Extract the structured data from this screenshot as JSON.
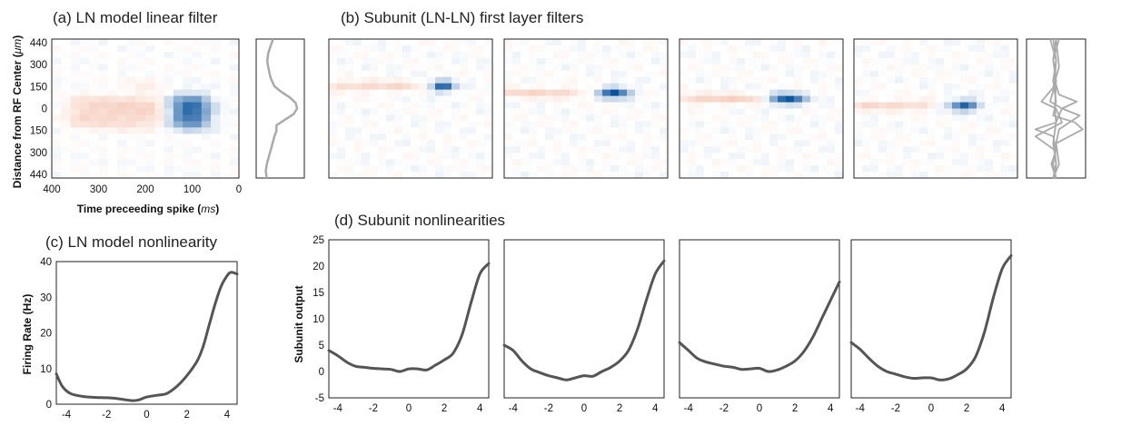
{
  "colors": {
    "heat_positive": "#e8845e",
    "heat_negative": "#08519c",
    "trace_gray": "#aaaaaa",
    "curve_dark": "#555555",
    "frame": "#222222"
  },
  "panels": {
    "a_title": "(a) LN model linear filter",
    "b_title": "(b) Subunit (LN-LN) first layer filters",
    "c_title": "(c) LN model nonlinearity",
    "d_title": "(d) Subunit nonlinearities"
  },
  "labels": {
    "a_xlabel_pre": "Time preceeding spike (",
    "a_xlabel_unit": "ms",
    "a_xlabel_post": ")",
    "a_ylabel_pre": "Distance from RF Center (",
    "a_ylabel_unit": "μm",
    "a_ylabel_post": ")",
    "c_ylabel": "Firing Rate (Hz)",
    "d_ylabel": "Subunit output"
  },
  "chart_data": [
    {
      "id": "a_filter",
      "type": "heatmap",
      "title": "(a) LN model linear filter",
      "xlabel": "Time preceeding spike (ms)",
      "ylabel": "Distance from RF Center (μm)",
      "x_ticks": [
        "400",
        "300",
        "200",
        "100",
        "0"
      ],
      "y_ticks": [
        "440",
        "300",
        "150",
        "0",
        "150",
        "300",
        "440"
      ],
      "xlim": [
        400,
        0
      ],
      "ylim": [
        440,
        -440
      ],
      "rows": 22,
      "cols": 20,
      "components": [
        {
          "sign": 1,
          "amp": 0.34,
          "x": [
            125,
            360
          ],
          "y": [
            -115,
            70
          ]
        },
        {
          "sign": -1,
          "amp": 1.0,
          "x": [
            70,
            150
          ],
          "y": [
            -115,
            75
          ]
        },
        {
          "sign": 1,
          "amp": 0.15,
          "x": [
            170,
            230
          ],
          "y": [
            110,
            190
          ]
        }
      ]
    },
    {
      "id": "a_profile",
      "type": "line",
      "y_from_top": [
        0,
        0.05,
        0.1,
        0.16,
        0.22,
        0.28,
        0.34,
        0.38,
        0.42,
        0.46,
        0.5,
        0.54,
        0.58,
        0.62,
        0.66,
        0.7,
        0.75,
        0.8,
        0.85,
        0.9,
        0.95,
        1.0
      ],
      "x": [
        0.35,
        0.3,
        0.25,
        0.23,
        0.26,
        0.3,
        0.38,
        0.52,
        0.7,
        0.82,
        0.85,
        0.78,
        0.6,
        0.42,
        0.42,
        0.38,
        0.34,
        0.3,
        0.26,
        0.22,
        0.2,
        0.22
      ]
    },
    {
      "id": "b_filters",
      "type": "heatmap",
      "title": "(b) Subunit (LN-LN) first layer filters",
      "rows": 22,
      "cols": 20,
      "filters": [
        {
          "center_row": 7.5,
          "blue_col": [
            12.5,
            15.5
          ],
          "orange_col": [
            0,
            10.5
          ],
          "orange_amp": 0.3,
          "blue_amp": 0.95
        },
        {
          "center_row": 8.5,
          "blue_col": [
            11.5,
            15.5
          ],
          "orange_col": [
            0,
            9.5
          ],
          "orange_amp": 0.3,
          "blue_amp": 1.0
        },
        {
          "center_row": 9.5,
          "blue_col": [
            11.0,
            15.5
          ],
          "orange_col": [
            0,
            9.5
          ],
          "orange_amp": 0.34,
          "blue_amp": 1.0
        },
        {
          "center_row": 10.5,
          "blue_col": [
            11.5,
            15.5
          ],
          "orange_col": [
            0,
            9.5
          ],
          "orange_amp": 0.3,
          "blue_amp": 0.9
        }
      ]
    },
    {
      "id": "b_profiles",
      "type": "line",
      "series": [
        {
          "y_from_top": [
            0,
            0.15,
            0.3,
            0.4,
            0.45,
            0.5,
            0.6,
            0.75,
            0.9,
            1.0
          ],
          "x": [
            0.45,
            0.5,
            0.48,
            0.55,
            0.85,
            0.6,
            0.5,
            0.45,
            0.5,
            0.48
          ]
        },
        {
          "y_from_top": [
            0,
            0.15,
            0.3,
            0.45,
            0.5,
            0.55,
            0.65,
            0.75,
            0.9,
            1.0
          ],
          "x": [
            0.5,
            0.45,
            0.5,
            0.4,
            0.6,
            0.9,
            0.55,
            0.5,
            0.45,
            0.5
          ]
        },
        {
          "y_from_top": [
            0,
            0.15,
            0.3,
            0.45,
            0.55,
            0.6,
            0.65,
            0.75,
            0.9,
            1.0
          ],
          "x": [
            0.4,
            0.5,
            0.45,
            0.5,
            0.45,
            0.82,
            0.95,
            0.5,
            0.55,
            0.45
          ]
        },
        {
          "y_from_top": [
            0,
            0.15,
            0.3,
            0.5,
            0.6,
            0.65,
            0.7,
            0.8,
            0.9,
            1.0
          ],
          "x": [
            0.55,
            0.45,
            0.5,
            0.48,
            0.5,
            0.15,
            0.45,
            0.5,
            0.42,
            0.5
          ]
        },
        {
          "y_from_top": [
            0,
            0.2,
            0.35,
            0.45,
            0.5,
            0.6,
            0.7,
            0.8,
            0.9,
            1.0
          ],
          "x": [
            0.5,
            0.55,
            0.45,
            0.25,
            0.5,
            0.6,
            0.15,
            0.48,
            0.5,
            0.45
          ]
        }
      ]
    },
    {
      "id": "c_nonlinearity",
      "type": "line",
      "title": "(c) LN model nonlinearity",
      "xlabel": "",
      "ylabel": "Firing Rate (Hz)",
      "xlim": [
        -4.5,
        4.5
      ],
      "ylim": [
        0,
        40
      ],
      "x_ticks": [
        -4,
        -2,
        0,
        2,
        4
      ],
      "y_ticks": [
        0,
        10,
        20,
        30,
        40
      ],
      "x": [
        -4.5,
        -4.2,
        -3.8,
        -3.2,
        -2.6,
        -2.0,
        -1.5,
        -1.0,
        -0.7,
        -0.4,
        0.0,
        0.5,
        1.0,
        1.5,
        2.0,
        2.5,
        2.8,
        3.1,
        3.4,
        3.7,
        4.0,
        4.2,
        4.5
      ],
      "y": [
        8.5,
        5.0,
        3.0,
        2.2,
        1.9,
        1.8,
        1.6,
        1.2,
        1.0,
        1.2,
        2.0,
        2.5,
        3.0,
        5.0,
        8.0,
        12.0,
        16.0,
        22.0,
        28.0,
        33.0,
        36.0,
        37.0,
        36.5
      ]
    },
    {
      "id": "d_nonlinearities",
      "type": "line",
      "title": "(d) Subunit nonlinearities",
      "ylabel": "Subunit output",
      "xlim": [
        -4.5,
        4.5
      ],
      "ylim": [
        -5,
        25
      ],
      "x_ticks": [
        -4,
        -2,
        0,
        2,
        4
      ],
      "y_ticks": [
        -5,
        0,
        5,
        10,
        15,
        20,
        25
      ],
      "series": [
        {
          "x": [
            -4.5,
            -4.0,
            -3.5,
            -3.0,
            -2.5,
            -2.0,
            -1.5,
            -1.0,
            -0.5,
            0.0,
            0.5,
            1.0,
            1.5,
            2.0,
            2.5,
            3.0,
            3.5,
            4.0,
            4.5
          ],
          "y": [
            4.0,
            3.0,
            1.8,
            1.0,
            0.8,
            0.6,
            0.5,
            0.4,
            0.0,
            0.5,
            0.5,
            0.3,
            1.2,
            2.2,
            3.5,
            7.0,
            13.0,
            18.5,
            20.5
          ]
        },
        {
          "x": [
            -4.5,
            -4.0,
            -3.5,
            -3.0,
            -2.5,
            -2.0,
            -1.5,
            -1.0,
            -0.5,
            0.0,
            0.5,
            1.0,
            1.5,
            2.0,
            2.5,
            3.0,
            3.5,
            4.0,
            4.5
          ],
          "y": [
            5.0,
            4.0,
            2.0,
            0.5,
            -0.2,
            -0.8,
            -1.2,
            -1.6,
            -1.2,
            -0.8,
            -0.9,
            0.0,
            0.8,
            2.0,
            4.0,
            8.0,
            13.5,
            18.5,
            21.0
          ]
        },
        {
          "x": [
            -4.5,
            -4.0,
            -3.5,
            -3.0,
            -2.5,
            -2.0,
            -1.5,
            -1.0,
            -0.5,
            0.0,
            0.5,
            1.0,
            1.5,
            2.0,
            2.5,
            3.0,
            3.5,
            4.0,
            4.5
          ],
          "y": [
            5.5,
            4.0,
            2.5,
            1.8,
            1.4,
            1.0,
            0.8,
            0.4,
            0.5,
            0.6,
            0.0,
            0.3,
            1.0,
            2.0,
            3.8,
            6.5,
            10.0,
            13.5,
            17.0
          ]
        },
        {
          "x": [
            -4.5,
            -4.0,
            -3.5,
            -3.0,
            -2.5,
            -2.0,
            -1.5,
            -1.0,
            -0.5,
            0.0,
            0.5,
            1.0,
            1.5,
            2.0,
            2.5,
            3.0,
            3.5,
            4.0,
            4.5
          ],
          "y": [
            5.5,
            4.2,
            2.5,
            1.0,
            0.0,
            -0.5,
            -1.0,
            -1.3,
            -1.2,
            -1.2,
            -1.6,
            -1.4,
            -0.6,
            0.5,
            2.8,
            7.5,
            14.0,
            19.5,
            22.0
          ]
        }
      ]
    }
  ]
}
